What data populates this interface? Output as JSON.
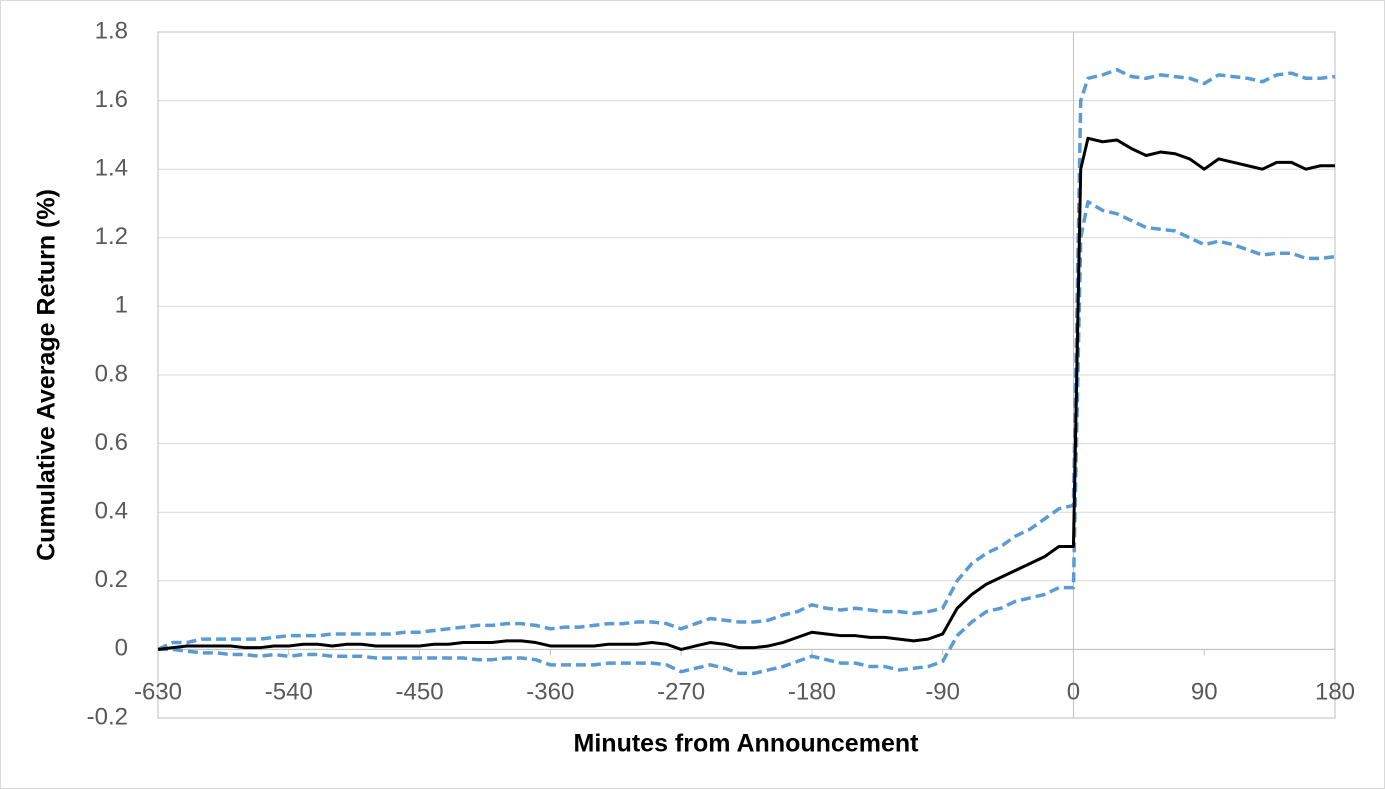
{
  "chart_data": {
    "type": "line",
    "xlabel": "Minutes from Announcement",
    "ylabel": "Cumulative Average Return (%)",
    "x": [
      -630,
      -620,
      -610,
      -600,
      -590,
      -580,
      -570,
      -560,
      -550,
      -540,
      -530,
      -520,
      -510,
      -500,
      -490,
      -480,
      -470,
      -460,
      -450,
      -440,
      -430,
      -420,
      -410,
      -400,
      -390,
      -380,
      -370,
      -360,
      -350,
      -340,
      -330,
      -320,
      -310,
      -300,
      -290,
      -280,
      -270,
      -260,
      -250,
      -240,
      -230,
      -220,
      -210,
      -200,
      -190,
      -180,
      -170,
      -160,
      -150,
      -140,
      -130,
      -120,
      -110,
      -100,
      -90,
      -80,
      -70,
      -60,
      -50,
      -40,
      -30,
      -20,
      -10,
      0,
      5,
      10,
      20,
      30,
      40,
      50,
      60,
      70,
      80,
      90,
      100,
      110,
      120,
      130,
      140,
      150,
      160,
      170,
      180
    ],
    "series": [
      {
        "color": "#5b9bd5",
        "dashed": true,
        "values": [
          0,
          0.02,
          0.02,
          0.03,
          0.03,
          0.03,
          0.03,
          0.03,
          0.035,
          0.04,
          0.04,
          0.04,
          0.045,
          0.045,
          0.045,
          0.045,
          0.045,
          0.05,
          0.05,
          0.055,
          0.06,
          0.065,
          0.07,
          0.07,
          0.075,
          0.075,
          0.07,
          0.06,
          0.065,
          0.065,
          0.07,
          0.075,
          0.075,
          0.08,
          0.08,
          0.075,
          0.06,
          0.075,
          0.09,
          0.085,
          0.08,
          0.08,
          0.085,
          0.1,
          0.11,
          0.13,
          0.12,
          0.115,
          0.12,
          0.115,
          0.11,
          0.11,
          0.105,
          0.11,
          0.12,
          0.2,
          0.25,
          0.28,
          0.3,
          0.33,
          0.35,
          0.38,
          0.41,
          0.42,
          1.6,
          1.665,
          1.675,
          1.69,
          1.67,
          1.665,
          1.675,
          1.67,
          1.665,
          1.65,
          1.675,
          1.67,
          1.665,
          1.655,
          1.675,
          1.68,
          1.665,
          1.665,
          1.67
        ]
      },
      {
        "color": "#5b9bd5",
        "dashed": true,
        "values": [
          0,
          0,
          -0.005,
          -0.01,
          -0.01,
          -0.015,
          -0.015,
          -0.02,
          -0.015,
          -0.02,
          -0.015,
          -0.015,
          -0.02,
          -0.02,
          -0.02,
          -0.025,
          -0.025,
          -0.025,
          -0.025,
          -0.025,
          -0.025,
          -0.025,
          -0.03,
          -0.03,
          -0.025,
          -0.025,
          -0.03,
          -0.045,
          -0.045,
          -0.045,
          -0.045,
          -0.04,
          -0.04,
          -0.04,
          -0.04,
          -0.045,
          -0.065,
          -0.055,
          -0.045,
          -0.055,
          -0.07,
          -0.07,
          -0.06,
          -0.05,
          -0.035,
          -0.02,
          -0.03,
          -0.04,
          -0.04,
          -0.05,
          -0.05,
          -0.06,
          -0.055,
          -0.05,
          -0.035,
          0.04,
          0.08,
          0.11,
          0.12,
          0.14,
          0.15,
          0.16,
          0.18,
          0.18,
          1.2,
          1.305,
          1.28,
          1.27,
          1.25,
          1.23,
          1.225,
          1.22,
          1.2,
          1.18,
          1.19,
          1.18,
          1.165,
          1.15,
          1.155,
          1.155,
          1.14,
          1.14,
          1.145
        ]
      },
      {
        "color": "#000000",
        "dashed": false,
        "values": [
          0,
          0.005,
          0.01,
          0.01,
          0.01,
          0.01,
          0.005,
          0.005,
          0.01,
          0.01,
          0.015,
          0.015,
          0.01,
          0.015,
          0.015,
          0.01,
          0.01,
          0.01,
          0.01,
          0.015,
          0.015,
          0.02,
          0.02,
          0.02,
          0.025,
          0.025,
          0.02,
          0.01,
          0.01,
          0.01,
          0.01,
          0.015,
          0.015,
          0.015,
          0.02,
          0.015,
          0,
          0.01,
          0.02,
          0.015,
          0.005,
          0.005,
          0.01,
          0.02,
          0.035,
          0.05,
          0.045,
          0.04,
          0.04,
          0.035,
          0.035,
          0.03,
          0.025,
          0.03,
          0.045,
          0.12,
          0.16,
          0.19,
          0.21,
          0.23,
          0.25,
          0.27,
          0.3,
          0.3,
          1.4,
          1.49,
          1.48,
          1.485,
          1.46,
          1.44,
          1.45,
          1.445,
          1.43,
          1.4,
          1.43,
          1.42,
          1.41,
          1.4,
          1.42,
          1.42,
          1.4,
          1.41,
          1.41
        ]
      }
    ],
    "xlim": [
      -630,
      180
    ],
    "xticks": [
      -630,
      -540,
      -450,
      -360,
      -270,
      -180,
      -90,
      0,
      90,
      180
    ],
    "ylim": [
      -0.2,
      1.8
    ],
    "yticks": [
      -0.2,
      0,
      0.2,
      0.4,
      0.6,
      0.8,
      1,
      1.2,
      1.4,
      1.6,
      1.8
    ],
    "grid": true
  }
}
